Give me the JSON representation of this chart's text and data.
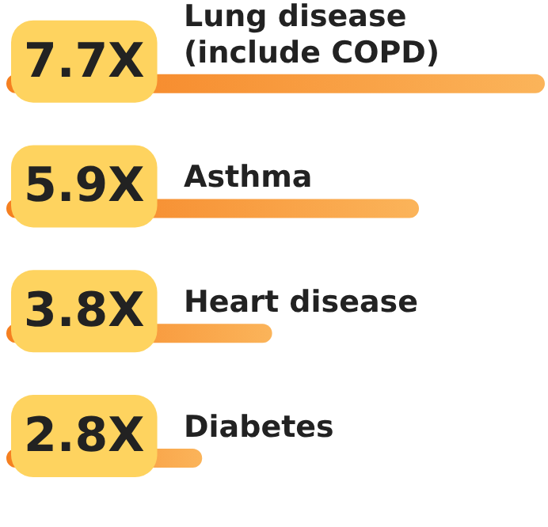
{
  "chart_data": {
    "type": "bar",
    "orientation": "horizontal",
    "categories": [
      "Lung disease\n(include COPD)",
      "Asthma",
      "Heart disease",
      "Diabetes"
    ],
    "values": [
      7.7,
      5.9,
      3.8,
      2.8
    ],
    "value_labels": [
      "7.7X",
      "5.9X",
      "3.8X",
      "2.8X"
    ],
    "color": "#f57f20"
  }
}
